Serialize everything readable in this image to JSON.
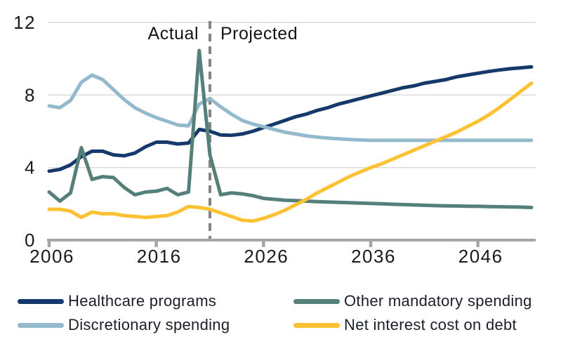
{
  "chart_data": {
    "type": "line",
    "title": "",
    "xlabel": "",
    "ylabel": "",
    "x_years": [
      2006,
      2007,
      2008,
      2009,
      2010,
      2011,
      2012,
      2013,
      2014,
      2015,
      2016,
      2017,
      2018,
      2019,
      2020,
      2021,
      2022,
      2023,
      2024,
      2025,
      2026,
      2027,
      2028,
      2029,
      2030,
      2031,
      2032,
      2033,
      2034,
      2035,
      2036,
      2037,
      2038,
      2039,
      2040,
      2041,
      2042,
      2043,
      2044,
      2045,
      2046,
      2047,
      2048,
      2049,
      2050,
      2051
    ],
    "series": [
      {
        "name": "Healthcare programs",
        "color": "#16396B",
        "values": [
          3.8,
          3.9,
          4.15,
          4.6,
          4.9,
          4.9,
          4.7,
          4.65,
          4.8,
          5.15,
          5.4,
          5.4,
          5.3,
          5.35,
          6.1,
          6.0,
          5.8,
          5.78,
          5.85,
          6.0,
          6.2,
          6.4,
          6.6,
          6.8,
          6.95,
          7.15,
          7.3,
          7.5,
          7.65,
          7.8,
          7.95,
          8.1,
          8.25,
          8.4,
          8.5,
          8.65,
          8.75,
          8.85,
          9.0,
          9.1,
          9.2,
          9.3,
          9.38,
          9.45,
          9.5,
          9.55
        ]
      },
      {
        "name": "Discretionary spending",
        "color": "#92B9CC",
        "values": [
          7.4,
          7.3,
          7.7,
          8.7,
          9.1,
          8.85,
          8.3,
          7.75,
          7.3,
          7.0,
          6.75,
          6.55,
          6.35,
          6.3,
          7.5,
          7.8,
          7.35,
          6.95,
          6.6,
          6.4,
          6.25,
          6.1,
          5.95,
          5.85,
          5.75,
          5.68,
          5.62,
          5.58,
          5.55,
          5.52,
          5.5,
          5.5,
          5.5,
          5.5,
          5.5,
          5.5,
          5.5,
          5.5,
          5.5,
          5.5,
          5.5,
          5.5,
          5.5,
          5.5,
          5.5,
          5.5
        ]
      },
      {
        "name": "Other mandatory spending",
        "color": "#55807A",
        "values": [
          2.65,
          2.15,
          2.6,
          5.1,
          3.35,
          3.5,
          3.45,
          2.9,
          2.5,
          2.65,
          2.7,
          2.85,
          2.5,
          2.65,
          10.45,
          4.7,
          2.5,
          2.6,
          2.55,
          2.45,
          2.3,
          2.25,
          2.2,
          2.18,
          2.15,
          2.12,
          2.1,
          2.08,
          2.06,
          2.04,
          2.02,
          2.0,
          1.98,
          1.96,
          1.94,
          1.92,
          1.9,
          1.89,
          1.88,
          1.87,
          1.86,
          1.85,
          1.84,
          1.83,
          1.82,
          1.8
        ]
      },
      {
        "name": "Net interest cost on debt",
        "color": "#FCC233",
        "values": [
          1.7,
          1.7,
          1.6,
          1.25,
          1.55,
          1.45,
          1.45,
          1.35,
          1.3,
          1.25,
          1.3,
          1.35,
          1.55,
          1.85,
          1.8,
          1.7,
          1.5,
          1.3,
          1.1,
          1.05,
          1.2,
          1.4,
          1.65,
          1.95,
          2.25,
          2.6,
          2.9,
          3.2,
          3.5,
          3.75,
          4.0,
          4.2,
          4.45,
          4.7,
          4.95,
          5.2,
          5.45,
          5.7,
          5.95,
          6.25,
          6.55,
          6.9,
          7.3,
          7.75,
          8.2,
          8.65
        ]
      }
    ],
    "xticks": [
      "2006",
      "2016",
      "2026",
      "2036",
      "2046"
    ],
    "yticks": [
      "0",
      "4",
      "8",
      "12"
    ],
    "xlim": [
      2006,
      2051
    ],
    "ylim": [
      0,
      12
    ],
    "grid": "horizontal",
    "legend_position": "bottom",
    "divider_year": 2021,
    "annotations": {
      "left_label": "Actual",
      "right_label": "Projected"
    }
  },
  "legend": {
    "items": [
      {
        "label": "Healthcare programs",
        "color": "#16396B"
      },
      {
        "label": "Discretionary spending",
        "color": "#92B9CC"
      },
      {
        "label": "Other mandatory spending",
        "color": "#55807A"
      },
      {
        "label": "Net interest cost on debt",
        "color": "#FCC233"
      }
    ]
  },
  "style_colors": {
    "gridline": "#D9D9D9",
    "axis": "#A6A6A6",
    "divider": "#848484",
    "tick_text": "#1a1a1a"
  }
}
